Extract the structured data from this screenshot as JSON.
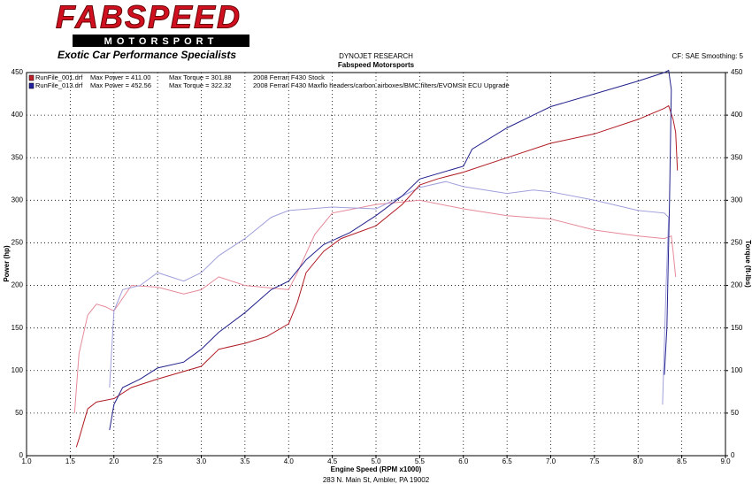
{
  "header": {
    "logo": "FABSPEED",
    "logo_sub": "MOTORSPORT",
    "tagline": "Exotic Car Performance Specialists",
    "title": "DYNOJET RESEARCH",
    "subtitle": "Fabspeed Motorsports",
    "settings": "CF: SAE  Smoothing: 5"
  },
  "chart_data": {
    "type": "line",
    "xlabel": "Engine Speed (RPM x1000)",
    "ylabel": "Power (hp)",
    "y2label": "Torque (ft-lbs)",
    "xlim": [
      1,
      9
    ],
    "ylim": [
      0,
      450
    ],
    "y2lim": [
      0,
      450
    ],
    "xticks": [
      {
        "value": 1,
        "label": "1.0"
      },
      {
        "value": 1.5,
        "label": "1.5"
      },
      {
        "value": 2,
        "label": "2.0"
      },
      {
        "value": 2.5,
        "label": "2.5"
      },
      {
        "value": 3,
        "label": "3.0"
      },
      {
        "value": 3.5,
        "label": "3.5"
      },
      {
        "value": 4,
        "label": "4.0"
      },
      {
        "value": 4.5,
        "label": "4.5"
      },
      {
        "value": 5,
        "label": "5.0"
      },
      {
        "value": 5.5,
        "label": "5.5"
      },
      {
        "value": 6,
        "label": "6.0"
      },
      {
        "value": 6.5,
        "label": "6.5"
      },
      {
        "value": 7,
        "label": "7.0"
      },
      {
        "value": 7.5,
        "label": "7.5"
      },
      {
        "value": 8,
        "label": "8.0"
      },
      {
        "value": 8.5,
        "label": "8.5"
      },
      {
        "value": 9,
        "label": "9.0"
      }
    ],
    "yticks": [
      0,
      50,
      100,
      150,
      200,
      250,
      300,
      350,
      400,
      450
    ],
    "y2ticks": [
      0,
      50,
      100,
      150,
      200,
      250,
      300,
      350,
      400,
      450
    ],
    "grid": true,
    "legend": [
      {
        "file": "RunFile_001.drf",
        "max_power": "Max Power = 411.00",
        "max_torque": "Max Torque = 301.88",
        "description": "2008 Ferrari F430 Stock",
        "color": "#c0202a"
      },
      {
        "file": "RunFile_013.drf",
        "max_power": "Max Power = 452.56",
        "max_torque": "Max Torque = 322.32",
        "description": "2008 Ferrari F430 Maxflo headers/carbon airboxes/BMC filters/EVOMSIt ECU Upgrade",
        "color": "#2020a0"
      }
    ],
    "series": [
      {
        "color": "#e68a9a",
        "axis": "y2",
        "x": [
          1.55,
          1.6,
          1.7,
          1.8,
          1.9,
          2.0,
          2.2,
          2.5,
          2.8,
          3.0,
          3.2,
          3.5,
          4.0,
          4.1,
          4.3,
          4.5,
          5.0,
          5.5,
          6.0,
          6.5,
          7.0,
          7.5,
          8.0,
          8.3,
          8.38,
          8.4,
          8.43
        ],
        "values": [
          50,
          120,
          165,
          178,
          175,
          170,
          200,
          198,
          190,
          195,
          210,
          200,
          195,
          215,
          260,
          285,
          295,
          300,
          290,
          282,
          278,
          265,
          258,
          255,
          258,
          240,
          210
        ]
      },
      {
        "color": "#a0a0dc",
        "axis": "y2",
        "x": [
          1.95,
          2.0,
          2.1,
          2.3,
          2.5,
          2.8,
          3.0,
          3.2,
          3.5,
          3.8,
          4.0,
          4.5,
          5.0,
          5.5,
          5.8,
          6.0,
          6.5,
          6.8,
          7.0,
          7.5,
          8.0,
          8.3,
          8.35,
          8.32,
          8.28
        ],
        "values": [
          80,
          170,
          195,
          200,
          215,
          205,
          215,
          235,
          255,
          280,
          288,
          292,
          290,
          315,
          322,
          316,
          308,
          312,
          310,
          300,
          288,
          285,
          280,
          200,
          60
        ]
      },
      {
        "color": "#b01c24",
        "x": [
          1.57,
          1.6,
          1.7,
          1.8,
          2.0,
          2.2,
          2.5,
          3.0,
          3.2,
          3.5,
          3.75,
          4.0,
          4.1,
          4.2,
          4.4,
          4.6,
          5.0,
          5.3,
          5.5,
          5.7,
          6.0,
          6.5,
          7.0,
          7.5,
          8.0,
          8.3,
          8.35,
          8.4,
          8.43,
          8.45
        ],
        "values": [
          10,
          20,
          55,
          63,
          67,
          80,
          90,
          105,
          125,
          132,
          140,
          155,
          180,
          215,
          240,
          255,
          270,
          295,
          318,
          325,
          333,
          350,
          367,
          378,
          395,
          408,
          411,
          395,
          380,
          335
        ]
      },
      {
        "color": "#22228c",
        "x": [
          1.95,
          2.0,
          2.1,
          2.3,
          2.5,
          2.8,
          3.0,
          3.2,
          3.5,
          3.8,
          4.0,
          4.2,
          4.4,
          4.7,
          5.0,
          5.3,
          5.5,
          6.0,
          6.1,
          6.5,
          7.0,
          7.5,
          8.0,
          8.3,
          8.35,
          8.38,
          8.36,
          8.33,
          8.3
        ],
        "values": [
          30,
          60,
          80,
          90,
          103,
          110,
          125,
          145,
          168,
          195,
          205,
          230,
          248,
          262,
          282,
          305,
          325,
          340,
          360,
          385,
          410,
          425,
          440,
          450,
          452.56,
          430,
          300,
          150,
          95
        ]
      }
    ]
  },
  "footer": "283 N. Main St, Ambler, PA 19002"
}
